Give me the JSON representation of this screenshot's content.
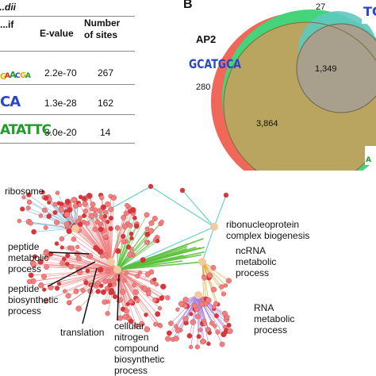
{
  "panel_a": {
    "headers": {
      "motif": [
        "...dii",
        "...if"
      ],
      "evalue": "E-value",
      "sites": [
        "Number",
        "of sites"
      ]
    },
    "rows": [
      {
        "logo": "...",
        "evalue": "2.2e-70",
        "sites": "267"
      },
      {
        "logo": "CA",
        "evalue": "1.3e-28",
        "sites": "162"
      },
      {
        "logo": "ATATTC",
        "evalue": "3.0e-20",
        "sites": "14"
      }
    ]
  },
  "panel_b": {
    "label": "B",
    "set_label": "AP2",
    "logo_text": "GCATGCA",
    "logo_right": "TC",
    "numbers": {
      "top": "27",
      "left": "280",
      "inner": "1,349",
      "main": "3,864"
    }
  },
  "network": {
    "labels": {
      "ribosome": "ribosome",
      "ribonucleoprotein": [
        "ribonucleoprotein",
        "complex biogenesis"
      ],
      "peptide_metabolic": [
        "peptide",
        "metabolic",
        "process"
      ],
      "ncrna": [
        "ncRNA",
        "metabolic",
        "process"
      ],
      "peptide_biosynthetic": [
        "peptide",
        "biosynthetic",
        "process"
      ],
      "rna": [
        "RNA",
        "metabolic",
        "process"
      ],
      "translation": "translation",
      "cellular_nitrogen": [
        "cellular",
        "nitrogen",
        "compound",
        "biosynthetic",
        "process"
      ]
    },
    "colors": {
      "node_red": "#d9363c",
      "node_pink": "#f08080",
      "green": "#5bbf3a",
      "purple": "#a57de0",
      "orange": "#e0a020",
      "teal": "#3fc9b8",
      "hub": "#f3c9a0"
    }
  }
}
